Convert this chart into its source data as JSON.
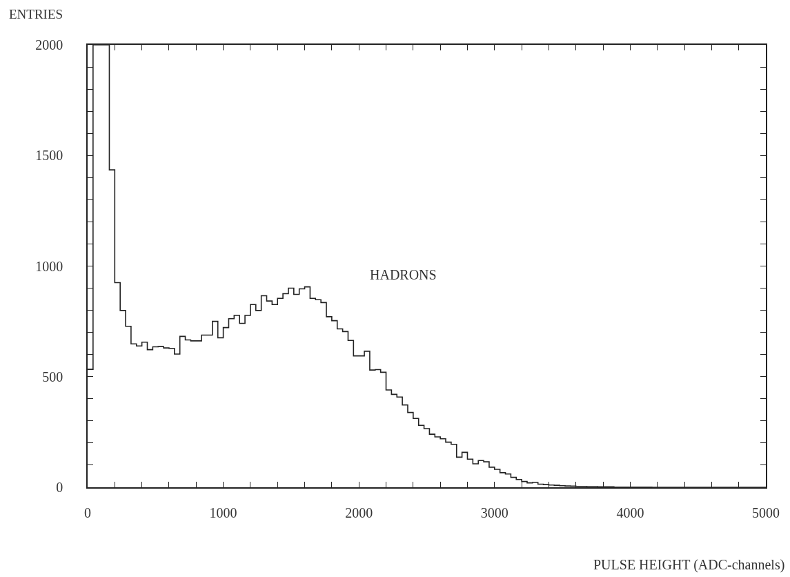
{
  "chart_data": {
    "type": "histogram",
    "xlabel": "PULSE HEIGHT (ADC-channels)",
    "ylabel": "ENTRIES",
    "annotations": [
      "HADRONS"
    ],
    "bins": [
      0,
      40,
      80,
      120,
      160,
      200,
      240,
      280,
      320,
      360,
      400,
      440,
      480,
      520,
      560,
      600,
      640,
      680,
      720,
      760,
      800,
      840,
      880,
      920,
      960,
      1000,
      1040,
      1080,
      1120,
      1160,
      1200,
      1240,
      1280,
      1320,
      1360,
      1400,
      1440,
      1480,
      1520,
      1560,
      1600,
      1640,
      1680,
      1720,
      1760,
      1800,
      1840,
      1880,
      1920,
      1960,
      2000,
      2040,
      2080,
      2120,
      2160,
      2200,
      2240,
      2280,
      2320,
      2360,
      2400,
      2440,
      2480,
      2520,
      2560,
      2600,
      2640,
      2680,
      2720,
      2760,
      2800,
      2840,
      2880,
      2920,
      2960,
      3000,
      3040,
      3080,
      3120,
      3160,
      3200,
      3240,
      3280,
      3320,
      3360,
      3400,
      3440,
      3480,
      3520,
      3560,
      3600,
      3640,
      3680,
      3720,
      3760,
      3800,
      3840,
      3880,
      3920,
      3960,
      4000,
      4040,
      4080,
      4120,
      4160,
      4200,
      4240,
      4280,
      4320,
      4360,
      4400,
      4440,
      4480,
      4520,
      4560,
      4600,
      4640,
      4680,
      4720,
      4760,
      4800,
      4840,
      4880,
      4920,
      4960,
      5000
    ],
    "values": [
      533,
      2000,
      2000,
      2000,
      1435,
      925,
      799,
      728,
      648,
      639,
      656,
      622,
      635,
      636,
      630,
      628,
      602,
      682,
      666,
      662,
      662,
      688,
      688,
      750,
      676,
      722,
      762,
      777,
      741,
      777,
      826,
      799,
      866,
      842,
      826,
      854,
      875,
      900,
      872,
      897,
      906,
      854,
      848,
      835,
      771,
      753,
      716,
      704,
      664,
      594,
      594,
      615,
      530,
      532,
      520,
      440,
      420,
      408,
      372,
      338,
      311,
      280,
      265,
      240,
      228,
      219,
      204,
      194,
      136,
      158,
      127,
      106,
      121,
      115,
      91,
      81,
      66,
      60,
      45,
      35,
      26,
      20,
      22,
      14,
      12,
      10,
      9,
      7,
      6,
      5,
      4,
      4,
      3,
      3,
      2,
      2,
      2,
      1,
      1,
      1,
      1,
      1,
      1,
      1,
      0,
      0,
      0,
      0,
      0,
      0,
      0,
      0,
      0,
      0,
      0,
      0,
      0,
      0,
      0,
      0,
      0,
      0,
      0,
      0,
      0
    ],
    "color": "#222222",
    "xlim": [
      0,
      5000
    ],
    "ylim": [
      0,
      2000
    ],
    "xticks": [
      0,
      {
        "value": 200,
        "label": null
      },
      {
        "value": 400,
        "label": null
      },
      {
        "value": 600,
        "label": null
      },
      {
        "value": 800,
        "label": null
      },
      1000,
      {
        "value": 1200,
        "label": null
      },
      {
        "value": 1400,
        "label": null
      },
      {
        "value": 1600,
        "label": null
      },
      {
        "value": 1800,
        "label": null
      },
      2000,
      {
        "value": 2200,
        "label": null
      },
      {
        "value": 2400,
        "label": null
      },
      {
        "value": 2600,
        "label": null
      },
      {
        "value": 2800,
        "label": null
      },
      3000,
      {
        "value": 3200,
        "label": null
      },
      {
        "value": 3400,
        "label": null
      },
      {
        "value": 3600,
        "label": null
      },
      {
        "value": 3800,
        "label": null
      },
      4000,
      {
        "value": 4200,
        "label": null
      },
      {
        "value": 4400,
        "label": null
      },
      {
        "value": 4600,
        "label": null
      },
      {
        "value": 4800,
        "label": null
      },
      5000
    ],
    "yticks": [
      0,
      {
        "value": 100,
        "label": null
      },
      {
        "value": 200,
        "label": null
      },
      {
        "value": 300,
        "label": null
      },
      {
        "value": 400,
        "label": null
      },
      500,
      {
        "value": 600,
        "label": null
      },
      {
        "value": 700,
        "label": null
      },
      {
        "value": 800,
        "label": null
      },
      {
        "value": 900,
        "label": null
      },
      1000,
      {
        "value": 1100,
        "label": null
      },
      {
        "value": 1200,
        "label": null
      },
      {
        "value": 1300,
        "label": null
      },
      {
        "value": 1400,
        "label": null
      },
      1500,
      {
        "value": 1600,
        "label": null
      },
      {
        "value": 1700,
        "label": null
      },
      {
        "value": 1800,
        "label": null
      },
      {
        "value": 1900,
        "label": null
      },
      2000
    ]
  }
}
